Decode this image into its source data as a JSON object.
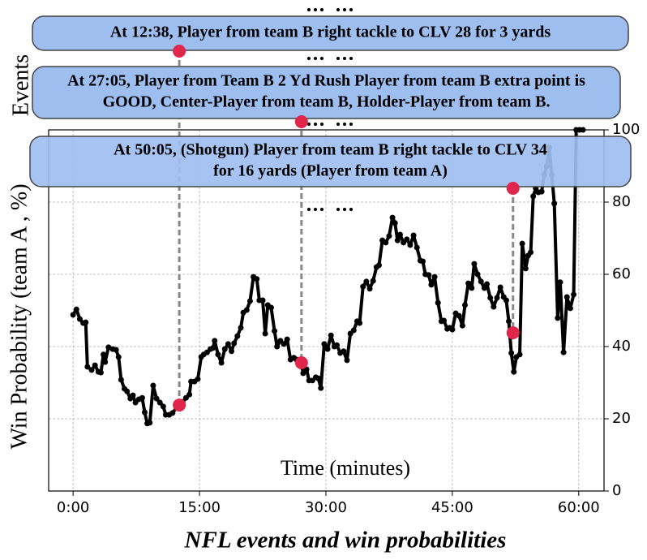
{
  "chart_data": {
    "type": "line",
    "caption": "NFL events and win probabilities",
    "panel_label": "Events",
    "y_label": "Win Probability (team A , %)",
    "x_label": "Time (minutes)",
    "xlim": [
      -2.9,
      63
    ],
    "ylim": [
      0,
      100
    ],
    "xticks": [
      {
        "value": 0,
        "label": "0:00"
      },
      {
        "value": 15,
        "label": "15:00"
      },
      {
        "value": 30,
        "label": "30:00"
      },
      {
        "value": 45,
        "label": "45:00"
      },
      {
        "value": 60,
        "label": "60:00"
      }
    ],
    "yticks": [
      0,
      20,
      40,
      60,
      80,
      100
    ],
    "grid": true,
    "x": [
      0,
      0.4,
      0.8,
      1.2,
      1.5,
      1.7,
      2.2,
      2.6,
      3,
      3.3,
      3.6,
      3.8,
      4.2,
      4.7,
      5.1,
      5.4,
      5.7,
      6.1,
      6.4,
      6.8,
      7.1,
      7.4,
      7.8,
      8.2,
      8.5,
      8.8,
      9.1,
      9.5,
      9.9,
      10.3,
      10.7,
      11,
      11.4,
      11.8,
      12.5,
      13,
      13.4,
      13.8,
      14,
      14.4,
      14.8,
      15.2,
      15.5,
      15.9,
      16.3,
      16.6,
      16.8,
      17.2,
      17.6,
      18,
      18.4,
      18.8,
      19.1,
      19.5,
      19.9,
      20.2,
      20.6,
      21,
      21.4,
      21.8,
      22.1,
      22.5,
      22.8,
      23.1,
      23.5,
      23.9,
      24.2,
      24.6,
      25,
      25.4,
      25.8,
      26.2,
      26.5,
      27,
      27.3,
      27.7,
      28,
      28.4,
      28.8,
      29.1,
      29.4,
      29.8,
      30.2,
      30.6,
      31,
      31.3,
      31.7,
      32.1,
      32.5,
      32.9,
      33.3,
      33.7,
      34,
      34.4,
      34.8,
      35.2,
      35.6,
      36,
      36.3,
      36.7,
      37.1,
      37.5,
      37.9,
      38.2,
      38.5,
      38.8,
      39.2,
      39.6,
      40,
      40.4,
      40.8,
      41.2,
      41.5,
      41.8,
      42.2,
      42.5,
      42.9,
      43.3,
      43.7,
      44,
      44.4,
      44.7,
      45,
      45.4,
      45.8,
      46.2,
      46.5,
      46.9,
      47.3,
      47.6,
      48,
      48.4,
      48.8,
      49.1,
      49.5,
      49.9,
      50.3,
      50.7,
      51.1,
      51.4,
      51.7,
      52,
      52.3,
      52.6,
      53,
      53.3,
      53.7,
      54,
      54.3,
      54.6,
      54.9,
      55.2,
      55.6,
      55.9,
      56.2,
      56.5,
      56.8,
      57.1,
      57.5,
      57.8,
      58.2,
      58.6,
      59,
      59.4,
      59.7,
      60.1,
      60.5
    ],
    "series": [
      {
        "color": "#000000",
        "values": [
          48.8,
          50.3,
          47.6,
          46.5,
          46.7,
          34.4,
          33.5,
          34.8,
          33,
          32.8,
          37.8,
          35.7,
          39.8,
          39.3,
          39.1,
          37.1,
          30.8,
          28.3,
          27.6,
          25.6,
          26.5,
          24.5,
          25.4,
          25.8,
          21.8,
          18.7,
          18.9,
          29.2,
          25.6,
          24.5,
          23.4,
          21.1,
          21.1,
          21.6,
          23.8,
          24.7,
          25.8,
          26.7,
          30.3,
          30.3,
          31,
          37.1,
          37.8,
          38.4,
          39.3,
          39.6,
          41.6,
          37.8,
          35.5,
          39.3,
          40.7,
          38.7,
          40.9,
          42.9,
          45.2,
          49.4,
          50.1,
          52.6,
          59.3,
          58.7,
          52.8,
          52.8,
          43.6,
          51.5,
          50.8,
          44.3,
          40,
          41.6,
          40.7,
          42,
          36.4,
          36.9,
          36.4,
          36.2,
          32.6,
          33.7,
          30.6,
          30.6,
          31.5,
          31.2,
          28.5,
          40.7,
          39.3,
          43.1,
          40,
          40.4,
          38.2,
          38.7,
          36.2,
          43.6,
          44.5,
          47,
          46.5,
          56.6,
          58,
          56,
          58.2,
          62,
          62.5,
          69.4,
          68.8,
          70.6,
          75.7,
          74.2,
          69.4,
          71,
          68.8,
          69.7,
          68.1,
          70.8,
          67.4,
          63.8,
          63.6,
          60,
          59.8,
          57.1,
          59.3,
          52.1,
          47,
          47.2,
          44.9,
          45.2,
          44.7,
          49.2,
          48.5,
          45.8,
          51.5,
          57.5,
          56.2,
          62.9,
          60,
          58,
          56.2,
          57.3,
          53.5,
          51,
          53.5,
          56.4,
          53.7,
          52.8,
          47,
          38.2,
          33,
          37.1,
          37.8,
          68.5,
          61.6,
          65.2,
          66.1,
          81.6,
          83.8,
          82.7,
          82.9,
          87.6,
          89.9,
          95.1,
          87.6,
          79.6,
          47.9,
          57.8,
          38.4,
          53.7,
          50.6,
          54.4,
          100,
          100,
          100
        ]
      }
    ],
    "events": [
      {
        "lines": [
          "At 12:38, Player from team B right tackle to CLV 28 for 3 yards"
        ],
        "x": 12.6,
        "y": 23.8
      },
      {
        "lines": [
          "At 27:05, Player from Team B 2 Yd Rush Player from team B extra point is",
          "GOOD, Center-Player from team B, Holder-Player from team B."
        ],
        "x": 27.1,
        "y": 35.5
      },
      {
        "lines": [
          "At 50:05, (Shotgun) Player from team B right tackle to CLV 34",
          "for 16 yards (Player from team A)"
        ],
        "x": 52.2,
        "y": 43.8
      }
    ],
    "event_color": "#e0264a",
    "box_color": "#9ebef0"
  }
}
